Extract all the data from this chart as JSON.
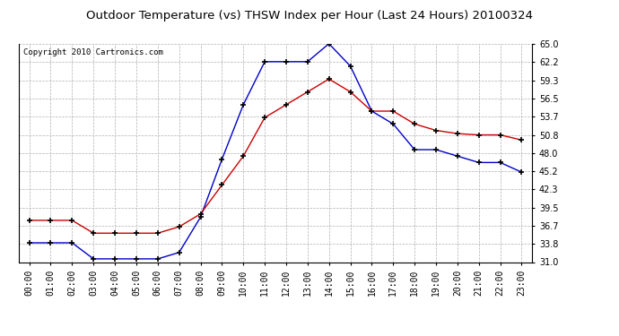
{
  "title": "Outdoor Temperature (vs) THSW Index per Hour (Last 24 Hours) 20100324",
  "copyright": "Copyright 2010 Cartronics.com",
  "hours": [
    "00:00",
    "01:00",
    "02:00",
    "03:00",
    "04:00",
    "05:00",
    "06:00",
    "07:00",
    "08:00",
    "09:00",
    "10:00",
    "11:00",
    "12:00",
    "13:00",
    "14:00",
    "15:00",
    "16:00",
    "17:00",
    "18:00",
    "19:00",
    "20:00",
    "21:00",
    "22:00",
    "23:00"
  ],
  "temp_red": [
    37.5,
    37.5,
    37.5,
    35.5,
    35.5,
    35.5,
    35.5,
    36.5,
    38.5,
    43.0,
    47.5,
    53.5,
    55.5,
    57.5,
    59.5,
    57.5,
    54.5,
    54.5,
    52.5,
    51.5,
    51.0,
    50.8,
    50.8,
    50.0
  ],
  "thsw_blue": [
    34.0,
    34.0,
    34.0,
    31.5,
    31.5,
    31.5,
    31.5,
    32.5,
    38.0,
    47.0,
    55.5,
    62.2,
    62.2,
    62.2,
    65.0,
    61.5,
    54.5,
    52.5,
    48.5,
    48.5,
    47.5,
    46.5,
    46.5,
    45.0
  ],
  "y_ticks": [
    31.0,
    33.8,
    36.7,
    39.5,
    42.3,
    45.2,
    48.0,
    50.8,
    53.7,
    56.5,
    59.3,
    62.2,
    65.0
  ],
  "y_min": 31.0,
  "y_max": 65.0,
  "red_color": "#cc0000",
  "blue_color": "#0000cc",
  "background_color": "#ffffff",
  "grid_color": "#b0b0b0",
  "title_fontsize": 9.5,
  "tick_fontsize": 7,
  "copyright_fontsize": 6.5
}
